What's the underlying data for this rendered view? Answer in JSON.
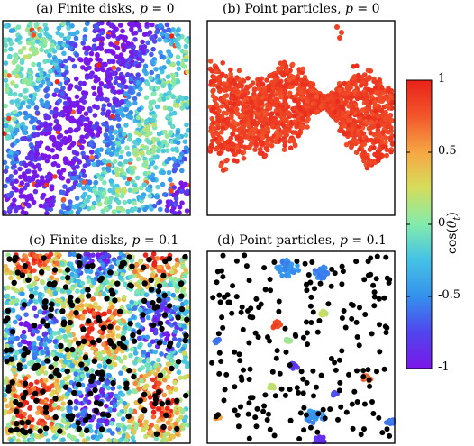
{
  "panels": [
    {
      "id": "a",
      "title": "(a) Finite disks, ",
      "var": "p",
      "eq": " = 0"
    },
    {
      "id": "b",
      "title": "(b) Point particles, ",
      "var": "p",
      "eq": " = 0"
    },
    {
      "id": "c",
      "title": "(c) Finite disks, ",
      "var": "p",
      "eq": " = 0.1"
    },
    {
      "id": "d",
      "title": "(d) Point particles, ",
      "var": "p",
      "eq": " = 0.1"
    }
  ],
  "colorbar": {
    "label": "cos(θ_t)",
    "ticks": [
      "1",
      "0.5",
      "0",
      "-0.5",
      "-1"
    ],
    "range": [
      -1,
      1
    ],
    "colormap": "rainbow",
    "inactive_color": "#000000"
  }
}
